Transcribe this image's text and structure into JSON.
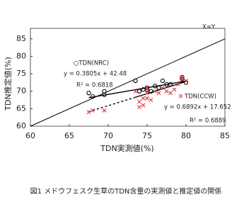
{
  "chart_data": {
    "type": "scatter",
    "x_label": "TDN実測値(%)",
    "y_label": "TDN推定値(%)",
    "caption": "図1  メドウフェスク生草のTDN含量の実測値と推定値の関係",
    "xlim": [
      60,
      85
    ],
    "xticks": [
      60,
      65,
      70,
      75,
      80,
      85
    ],
    "ylim": [
      60,
      88
    ],
    "yticks": [
      60,
      65,
      70,
      75,
      80,
      85
    ],
    "series": [
      {
        "name": "○TDN(NRC)",
        "color": "#000000",
        "marker": "circle",
        "x": [
          67.5,
          68,
          69.5,
          69.5,
          73.5,
          74,
          74.5,
          75,
          75,
          75.5,
          76,
          76.5,
          77,
          77.5,
          78,
          79.5,
          79.5,
          80
        ],
        "values": [
          69.5,
          68.5,
          69,
          70,
          73,
          70,
          70.5,
          71,
          70.5,
          70,
          71.5,
          71,
          73,
          72,
          72,
          73.5,
          74,
          72.5
        ]
      },
      {
        "name": "TDN(CCW)",
        "color": "#e8343c",
        "marker": "cross",
        "x": [
          67.5,
          68,
          69.5,
          73.5,
          74,
          74,
          74.5,
          74.5,
          75,
          75,
          75,
          75.5,
          76,
          76.5,
          77,
          77.5,
          78,
          78.5,
          79,
          79.5,
          79.5,
          80
        ],
        "values": [
          64,
          64.5,
          64.5,
          70,
          67,
          65.5,
          68,
          66,
          69.5,
          68,
          71,
          67.5,
          70,
          69.5,
          71,
          70,
          69.5,
          70.5,
          72,
          73.5,
          74,
          73
        ]
      }
    ],
    "lines": [
      {
        "x": [
          60,
          85
        ],
        "values": [
          60,
          85
        ],
        "dashed": false
      },
      {
        "x": [
          67.5,
          80
        ],
        "values": [
          68.16,
          72.92
        ],
        "dashed": false
      },
      {
        "x": [
          67.5,
          73.5
        ],
        "values": [
          64.17,
          68.29
        ],
        "dashed": true
      },
      {
        "x": [
          73.5,
          80
        ],
        "values": [
          68.29,
          72.79
        ],
        "dashed": false
      }
    ],
    "annotations": [
      "X=Y",
      "y = 0.3805x + 42.48",
      "R² = 0.6818",
      "y = 0.6892x + 17.652",
      "R² = 0.6889"
    ]
  }
}
